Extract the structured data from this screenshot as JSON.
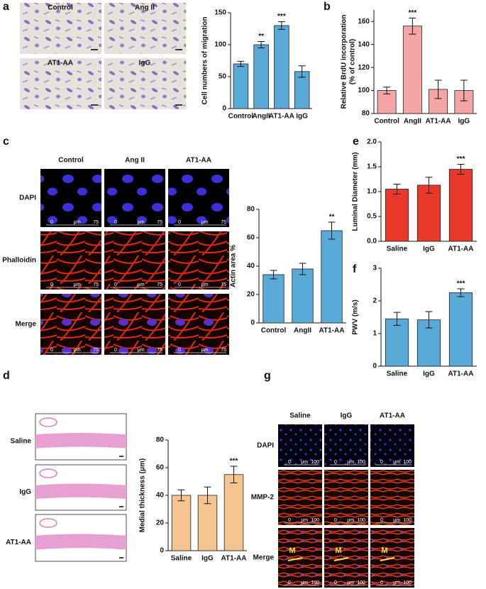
{
  "letters": [
    "a",
    "b",
    "c",
    "d",
    "e",
    "f",
    "g"
  ],
  "images": {
    "a": {
      "labels": [
        "Control",
        "Ang II",
        "AT1-AA",
        "IgG"
      ]
    },
    "c": {
      "columns": [
        "Control",
        "Ang II",
        "AT1-AA"
      ],
      "rows": [
        "DAPI",
        "Phalloidin",
        "Merge"
      ],
      "scale": [
        "0",
        "μm",
        "75"
      ]
    },
    "d": {
      "rows": [
        "Saline",
        "IgG",
        "AT1-AA"
      ]
    },
    "g": {
      "columns": [
        "Saline",
        "IgG",
        "AT1-AA"
      ],
      "rows": [
        "DAPI",
        "MMP-2",
        "Merge"
      ],
      "scale": [
        "0",
        "μm",
        "100"
      ],
      "marker": "M"
    }
  },
  "chart_data": [
    {
      "type": "bar",
      "ylabel": "Cell numbers of migration",
      "categories": [
        "Control",
        "AngII",
        "AT1-AA",
        "IgG"
      ],
      "values": [
        70,
        100,
        130,
        58
      ],
      "errors": [
        4,
        5,
        6,
        9
      ],
      "annotations": [
        null,
        "**",
        "***",
        null
      ],
      "color": "#5aaad8",
      "ylim": [
        0,
        150
      ],
      "yticks": [
        0,
        50,
        100,
        150
      ]
    },
    {
      "type": "bar",
      "ylabel": [
        "Relative BrdU incorporation",
        "(% of control)"
      ],
      "categories": [
        "Control",
        "AngII",
        "AT1-AA",
        "IgG"
      ],
      "values": [
        100,
        156,
        101,
        100
      ],
      "errors": [
        3,
        7,
        8,
        9
      ],
      "annotations": [
        null,
        "***",
        null,
        null
      ],
      "color": "#f4a6a6",
      "ylim": [
        80,
        170
      ],
      "yticks": [
        80,
        100,
        120,
        140,
        160
      ]
    },
    {
      "type": "bar",
      "ylabel": "Actin area %",
      "categories": [
        "Control",
        "AngII",
        "AT1-AA"
      ],
      "values": [
        34,
        38,
        65
      ],
      "errors": [
        3,
        4,
        6
      ],
      "annotations": [
        null,
        null,
        "**"
      ],
      "color": "#5aaad8",
      "ylim": [
        0,
        80
      ],
      "yticks": [
        0,
        20,
        40,
        60,
        80
      ]
    },
    {
      "type": "bar",
      "ylabel": "Medial thickness (μm)",
      "categories": [
        "Saline",
        "IgG",
        "AT1-AA"
      ],
      "values": [
        40,
        40,
        55
      ],
      "errors": [
        4,
        6,
        6
      ],
      "annotations": [
        null,
        null,
        "***"
      ],
      "color": "#f5c490",
      "ylim": [
        0,
        80
      ],
      "yticks": [
        0,
        20,
        40,
        60,
        80
      ]
    },
    {
      "type": "bar",
      "ylabel": "Luminal Diameter (mm)",
      "categories": [
        "Saline",
        "IgG",
        "AT1-AA"
      ],
      "values": [
        1.05,
        1.13,
        1.45
      ],
      "errors": [
        0.1,
        0.16,
        0.1
      ],
      "annotations": [
        null,
        null,
        "***"
      ],
      "color": "#e8392b",
      "ylim": [
        0,
        2
      ],
      "yticks": [
        {
          "value": 0,
          "label": "0.0"
        },
        0.5,
        {
          "value": 1,
          "label": "1.0"
        },
        1.5,
        {
          "value": 2,
          "label": "2.0"
        }
      ]
    },
    {
      "type": "bar",
      "ylabel": "PWV (m/s)",
      "categories": [
        "Saline",
        "IgG",
        "AT1-AA"
      ],
      "values": [
        1.45,
        1.42,
        2.25
      ],
      "errors": [
        0.2,
        0.25,
        0.12
      ],
      "annotations": [
        null,
        null,
        "***"
      ],
      "color": "#5aaad8",
      "ylim": [
        0,
        3
      ],
      "yticks": [
        0,
        1,
        2,
        3
      ]
    }
  ]
}
